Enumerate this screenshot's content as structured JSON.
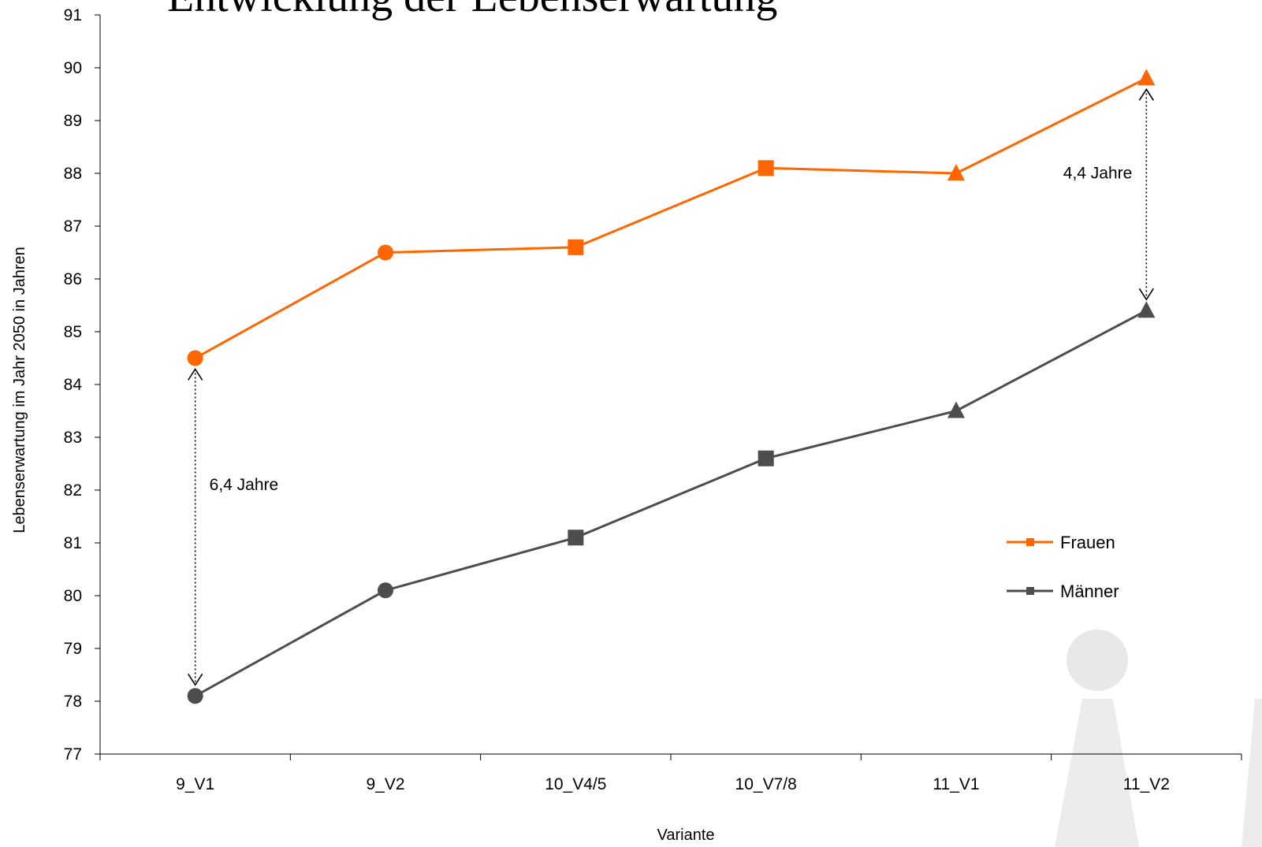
{
  "chart_data": {
    "type": "line",
    "title": "Entwicklung der Lebenserwartung",
    "xlabel": "Variante",
    "ylabel": "Lebenserwartung im Jahr 2050 in Jahren",
    "categories": [
      "9_V1",
      "9_V2",
      "10_V4/5",
      "10_V7/8",
      "11_V1",
      "11_V2"
    ],
    "ylim": [
      77,
      91
    ],
    "yticks": [
      77,
      78,
      79,
      80,
      81,
      82,
      83,
      84,
      85,
      86,
      87,
      88,
      89,
      90,
      91
    ],
    "grid": false,
    "legend_position": "right",
    "series": [
      {
        "name": "Frauen",
        "color": "#ff6600",
        "values": [
          84.5,
          86.5,
          86.6,
          88.1,
          88.0,
          89.8
        ],
        "markers": [
          "circle",
          "circle",
          "square",
          "square",
          "triangle",
          "triangle"
        ]
      },
      {
        "name": "Männer",
        "color": "#4d4d4d",
        "values": [
          78.1,
          80.1,
          81.1,
          82.6,
          83.5,
          85.4
        ],
        "markers": [
          "circle",
          "circle",
          "square",
          "square",
          "triangle",
          "triangle"
        ]
      }
    ],
    "annotations": [
      {
        "text": "6,4 Jahre",
        "category": "9_V1",
        "from": 78.1,
        "to": 84.5
      },
      {
        "text": "4,4 Jahre",
        "category": "11_V2",
        "from": 85.4,
        "to": 89.8
      }
    ]
  }
}
